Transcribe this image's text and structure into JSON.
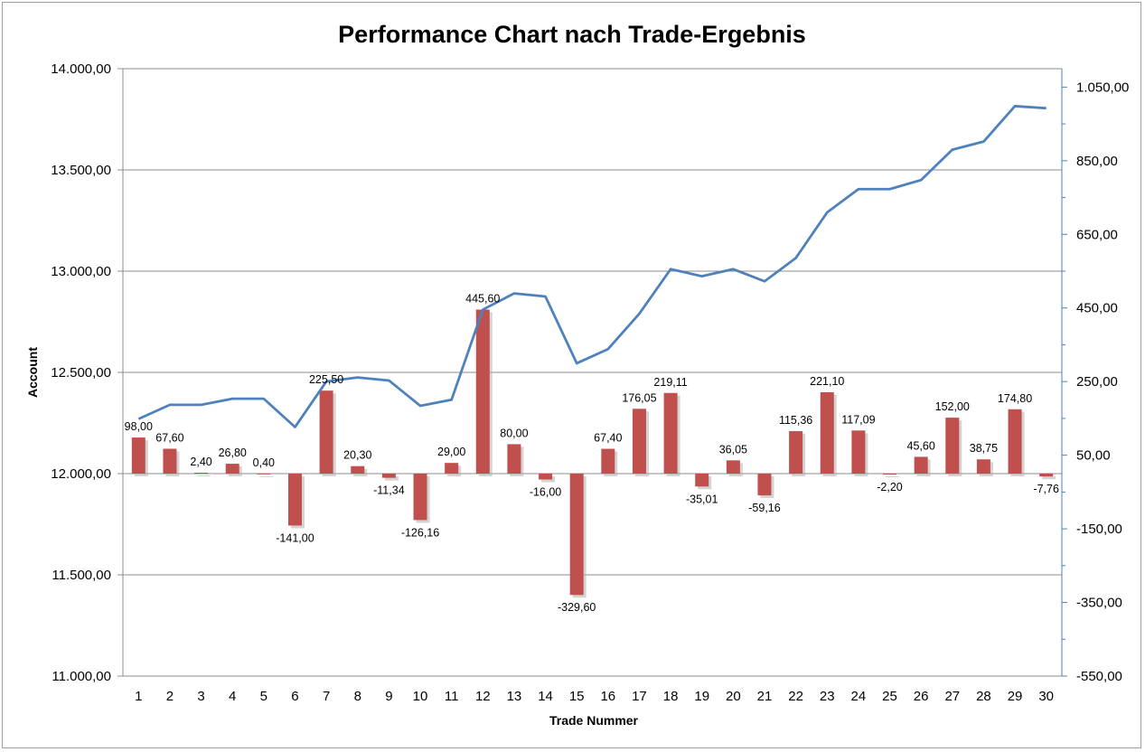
{
  "chart_data": {
    "type": "bar+line",
    "title": "Performance Chart nach Trade-Ergebnis",
    "xlabel": "Trade Nummer",
    "ylabel_left": "Account",
    "ylabel_right": "",
    "categories": [
      "1",
      "2",
      "3",
      "4",
      "5",
      "6",
      "7",
      "8",
      "9",
      "10",
      "11",
      "12",
      "13",
      "14",
      "15",
      "16",
      "17",
      "18",
      "19",
      "20",
      "21",
      "22",
      "23",
      "24",
      "25",
      "26",
      "27",
      "28",
      "29",
      "30"
    ],
    "left_axis": {
      "ylim": [
        11000,
        14000
      ],
      "ticks": [
        11000,
        11500,
        12000,
        12500,
        13000,
        13500,
        14000
      ],
      "tick_labels": [
        "11.000,00",
        "11.500,00",
        "12.000,00",
        "12.500,00",
        "13.000,00",
        "13.500,00",
        "14.000,00"
      ]
    },
    "right_axis": {
      "ylim": [
        -550,
        1100
      ],
      "ticks": [
        -550,
        -350,
        -150,
        50,
        250,
        450,
        650,
        850,
        1050
      ],
      "tick_labels": [
        "-550,00",
        "-350,00",
        "-150,00",
        "50,00",
        "250,00",
        "450,00",
        "650,00",
        "850,00",
        "1.050,00"
      ]
    },
    "series": [
      {
        "type": "bar",
        "axis": "right",
        "color": "#c0504d",
        "values": [
          98.0,
          67.6,
          2.4,
          26.8,
          0.4,
          -141.0,
          225.5,
          20.3,
          -11.34,
          -126.16,
          29.0,
          445.6,
          80.0,
          -16.0,
          -329.6,
          67.4,
          176.05,
          219.11,
          -35.01,
          36.05,
          -59.16,
          115.36,
          221.1,
          117.09,
          -2.2,
          45.6,
          152.0,
          38.75,
          174.8,
          -7.76
        ],
        "labels": [
          "98,00",
          "67,60",
          "2,40",
          "26,80",
          "0,40",
          "-141,00",
          "225,50",
          "20,30",
          "-11,34",
          "-126,16",
          "29,00",
          "445,60",
          "80,00",
          "-16,00",
          "-329,60",
          "67,40",
          "176,05",
          "219,11",
          "-35,01",
          "36,05",
          "-59,16",
          "115,36",
          "221,10",
          "117,09",
          "-2,20",
          "45,60",
          "152,00",
          "38,75",
          "174,80",
          "-7,76"
        ]
      },
      {
        "type": "line",
        "axis": "left",
        "color": "#4f81bd",
        "values": [
          12270,
          12340,
          12340,
          12370,
          12370,
          12230,
          12455,
          12475,
          12460,
          12335,
          12365,
          12810,
          12890,
          12875,
          12545,
          12615,
          12790,
          13010,
          12975,
          13010,
          12950,
          13065,
          13290,
          13405,
          13405,
          13450,
          13600,
          13640,
          13815,
          13805
        ]
      }
    ],
    "grid": true,
    "legend": "none"
  }
}
